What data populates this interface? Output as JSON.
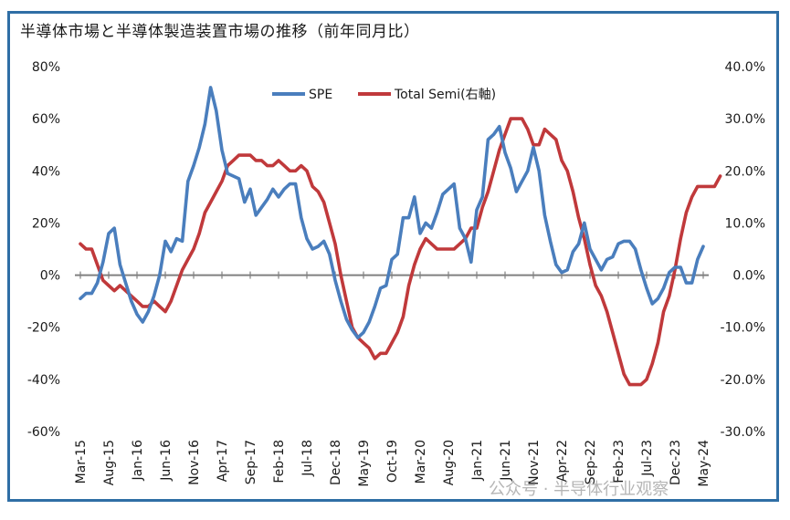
{
  "title": "半導体市場と半導体製造装置市場の推移（前年同月比）",
  "watermark": "公众号 · 半导体行业观察",
  "colors": {
    "spe": "#4a7ebd",
    "total_semi": "#c0393b",
    "zero_line": "#808080",
    "frame": "#2f6ea5",
    "text": "#1a1a1a"
  },
  "chart_data": {
    "type": "line",
    "title": "半導体市場と半導体製造装置市場の推移（前年同月比）",
    "xlabel": "",
    "ylabel": "",
    "x_tick_labels": [
      "Mar-15",
      "Aug-15",
      "Jan-16",
      "Jun-16",
      "Nov-16",
      "Apr-17",
      "Sep-17",
      "Feb-18",
      "Jul-18",
      "Dec-18",
      "May-19",
      "Oct-19",
      "Mar-20",
      "Aug-20",
      "Jan-21",
      "Jun-21",
      "Nov-21",
      "Apr-22",
      "Sep-22",
      "Feb-23",
      "Jul-23",
      "Dec-23",
      "May-24"
    ],
    "x_range": [
      "Mar-15",
      "May-24"
    ],
    "y_left": {
      "lim": [
        -60,
        80
      ],
      "ticks": [
        -60,
        -40,
        -20,
        0,
        20,
        40,
        60,
        80
      ],
      "tick_labels": [
        "-60%",
        "-40%",
        "-20%",
        "0%",
        "20%",
        "40%",
        "60%",
        "80%"
      ]
    },
    "y_right": {
      "lim": [
        -30,
        40
      ],
      "ticks": [
        -30,
        -20,
        -10,
        0,
        10,
        20,
        30,
        40
      ],
      "tick_labels": [
        "-30.0%",
        "-20.0%",
        "-10.0%",
        "0.0%",
        "10.0%",
        "20.0%",
        "30.0%",
        "40.0%"
      ]
    },
    "grid": false,
    "legend": "top-center",
    "series": [
      {
        "name": "SPE",
        "axis": "left",
        "start": "Mar-15",
        "values": [
          -9,
          -7,
          -7,
          -3,
          5,
          16,
          18,
          4,
          -3,
          -10,
          -15,
          -18,
          -14,
          -8,
          0,
          13,
          9,
          14,
          13,
          36,
          42,
          49,
          58,
          72,
          63,
          48,
          39,
          38,
          37,
          28,
          33,
          23,
          26,
          29,
          33,
          30,
          33,
          35,
          35,
          22,
          14,
          10,
          11,
          13,
          8,
          -2,
          -10,
          -17,
          -21,
          -24,
          -22,
          -18,
          -12,
          -5,
          -4,
          6,
          8,
          22,
          22,
          30,
          16,
          20,
          18,
          24,
          31,
          33,
          35,
          18,
          14,
          5,
          25,
          30,
          52,
          54,
          57,
          47,
          41,
          32,
          36,
          40,
          49,
          40,
          23,
          13,
          4,
          1,
          2,
          9,
          12,
          20,
          10,
          6,
          2,
          6,
          7,
          12,
          13,
          13,
          10,
          2,
          -5,
          -11,
          -9,
          -5,
          1,
          3,
          3,
          -3,
          -3,
          6,
          11
        ]
      },
      {
        "name": "Total Semi(右軸)",
        "axis": "right",
        "start": "Mar-15",
        "values": [
          6,
          5,
          5,
          2,
          -1,
          -2,
          -3,
          -2,
          -3,
          -4,
          -5,
          -6,
          -6,
          -5,
          -6,
          -7,
          -5,
          -2,
          1,
          3,
          5,
          8,
          12,
          14,
          16,
          18,
          21,
          22,
          23,
          23,
          23,
          22,
          22,
          21,
          21,
          22,
          21,
          20,
          20,
          21,
          20,
          17,
          16,
          14,
          10,
          6,
          0,
          -5,
          -10,
          -12,
          -13,
          -14,
          -16,
          -15,
          -15,
          -13,
          -11,
          -8,
          -2,
          2,
          5,
          7,
          6,
          5,
          5,
          5,
          5,
          6,
          7,
          9,
          9,
          13,
          16,
          20,
          24,
          27,
          30,
          30,
          30,
          28,
          25,
          25,
          28,
          27,
          26,
          22,
          20,
          16,
          11,
          7,
          2,
          -2,
          -4,
          -7,
          -11,
          -15,
          -19,
          -21,
          -21,
          -21,
          -20,
          -17,
          -13,
          -7,
          -4,
          1,
          7,
          12,
          15,
          17,
          17,
          17,
          17,
          19
        ]
      }
    ]
  }
}
